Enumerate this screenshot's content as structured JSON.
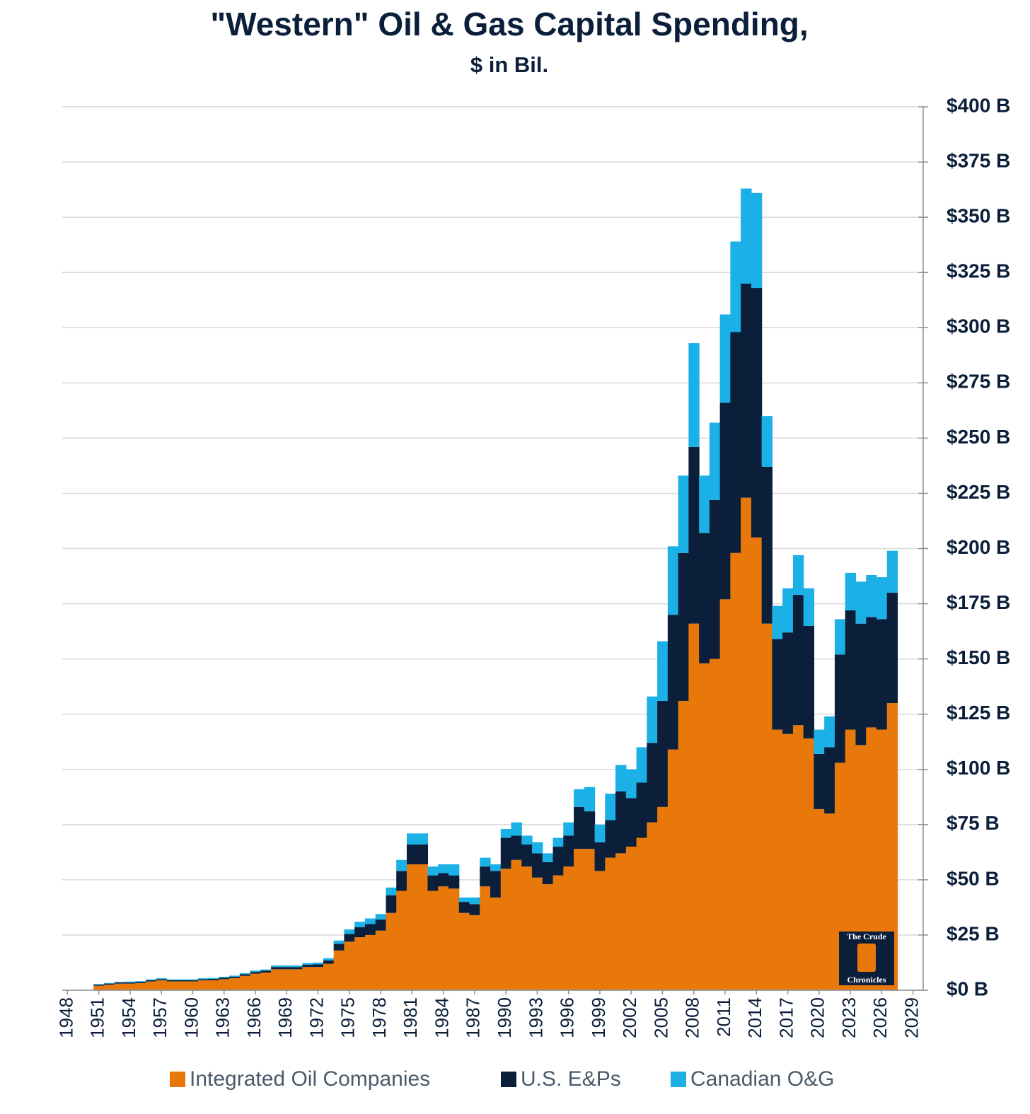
{
  "chart_data": {
    "type": "stacked_bar",
    "title": "\"Western\" Oil & Gas Capital Spending,",
    "subtitle": "$ in Bil.",
    "watermark": [
      "The Crude",
      "Chronicles"
    ],
    "x": [
      1951,
      1952,
      1953,
      1954,
      1955,
      1956,
      1957,
      1958,
      1959,
      1960,
      1961,
      1962,
      1963,
      1964,
      1965,
      1966,
      1967,
      1968,
      1969,
      1970,
      1971,
      1972,
      1973,
      1974,
      1975,
      1976,
      1977,
      1978,
      1979,
      1980,
      1981,
      1982,
      1983,
      1984,
      1985,
      1986,
      1987,
      1988,
      1989,
      1990,
      1991,
      1992,
      1993,
      1994,
      1995,
      1996,
      1997,
      1998,
      1999,
      2000,
      2001,
      2002,
      2003,
      2004,
      2005,
      2006,
      2007,
      2008,
      2009,
      2010,
      2011,
      2012,
      2013,
      2014,
      2015,
      2016,
      2017,
      2018,
      2019,
      2020,
      2021,
      2022,
      2023,
      2024,
      2025,
      2026,
      2027
    ],
    "series": [
      {
        "name": "Integrated Oil Companies",
        "color": "#e8780a",
        "values": [
          2,
          2.5,
          3,
          3,
          3.2,
          4,
          4.5,
          4,
          4,
          4,
          4.5,
          4.5,
          5,
          5.5,
          6.5,
          7.5,
          8,
          9.5,
          9.5,
          9.5,
          10.5,
          10.5,
          12,
          18,
          22,
          24,
          25,
          27,
          35,
          45,
          57,
          57,
          45,
          47,
          46,
          35,
          34,
          47,
          42,
          55,
          59,
          56,
          51,
          48,
          52,
          56,
          64,
          64,
          54,
          60,
          62,
          65,
          69,
          76,
          83,
          109,
          131,
          166,
          148,
          150,
          177,
          198,
          223,
          205,
          166,
          118,
          116,
          120,
          114,
          82,
          80,
          103,
          118,
          111,
          119,
          118,
          130
        ]
      },
      {
        "name": "U.S. E&Ps",
        "color": "#0b1f3b",
        "values": [
          0.5,
          0.5,
          0.5,
          0.5,
          0.5,
          0.5,
          0.5,
          0.5,
          0.5,
          0.5,
          0.5,
          0.6,
          0.6,
          0.6,
          0.7,
          0.8,
          0.8,
          1,
          1,
          1,
          1,
          1.2,
          1.5,
          3,
          3.5,
          4.5,
          5,
          5,
          8,
          9,
          9,
          9,
          7,
          6,
          6,
          5,
          5,
          9,
          12,
          14,
          11,
          10,
          11,
          10,
          13,
          14,
          19,
          17,
          13,
          17,
          28,
          22,
          25,
          36,
          48,
          61,
          67,
          80,
          59,
          72,
          89,
          100,
          97,
          113,
          71,
          41,
          46,
          59,
          51,
          25,
          30,
          49,
          54,
          55,
          50,
          50,
          50
        ]
      },
      {
        "name": "Canadian O&G",
        "color": "#1bb0e6",
        "values": [
          0.3,
          0.3,
          0.3,
          0.4,
          0.4,
          0.4,
          0.4,
          0.4,
          0.4,
          0.4,
          0.4,
          0.4,
          0.5,
          0.5,
          0.5,
          0.6,
          0.6,
          0.7,
          0.7,
          0.7,
          0.8,
          0.8,
          1,
          1.5,
          2,
          2.5,
          2.5,
          2.5,
          3.5,
          5,
          5,
          5,
          4,
          4,
          5,
          2,
          3,
          4,
          3,
          4,
          6,
          4,
          5,
          4,
          4,
          6,
          8,
          11,
          8,
          12,
          12,
          13,
          16,
          21,
          27,
          31,
          35,
          47,
          26,
          35,
          40,
          41,
          43,
          43,
          23,
          15,
          20,
          18,
          17,
          11,
          14,
          16,
          17,
          19,
          19,
          19,
          19
        ]
      }
    ],
    "xlim": [
      1947.5,
      2029.5
    ],
    "xticks": [
      1948,
      1951,
      1954,
      1957,
      1960,
      1963,
      1966,
      1969,
      1972,
      1975,
      1978,
      1981,
      1984,
      1987,
      1990,
      1993,
      1996,
      1999,
      2002,
      2005,
      2008,
      2011,
      2014,
      2017,
      2020,
      2023,
      2026,
      2029
    ],
    "ylim": [
      0,
      400
    ],
    "yticks": [
      {
        "value": 0,
        "label": "$0 B"
      },
      {
        "value": 25,
        "label": "$25 B"
      },
      {
        "value": 50,
        "label": "$50 B"
      },
      {
        "value": 75,
        "label": "$75 B"
      },
      {
        "value": 100,
        "label": "$100 B"
      },
      {
        "value": 125,
        "label": "$125 B"
      },
      {
        "value": 150,
        "label": "$150 B"
      },
      {
        "value": 175,
        "label": "$175 B"
      },
      {
        "value": 200,
        "label": "$200 B"
      },
      {
        "value": 225,
        "label": "$225 B"
      },
      {
        "value": 250,
        "label": "$250 B"
      },
      {
        "value": 275,
        "label": "$275 B"
      },
      {
        "value": 300,
        "label": "$300 B"
      },
      {
        "value": 325,
        "label": "$325 B"
      },
      {
        "value": 350,
        "label": "$350 B"
      },
      {
        "value": 375,
        "label": "$375 B"
      },
      {
        "value": 400,
        "label": "$400 B"
      }
    ],
    "grid": true,
    "legend": "bottom"
  }
}
